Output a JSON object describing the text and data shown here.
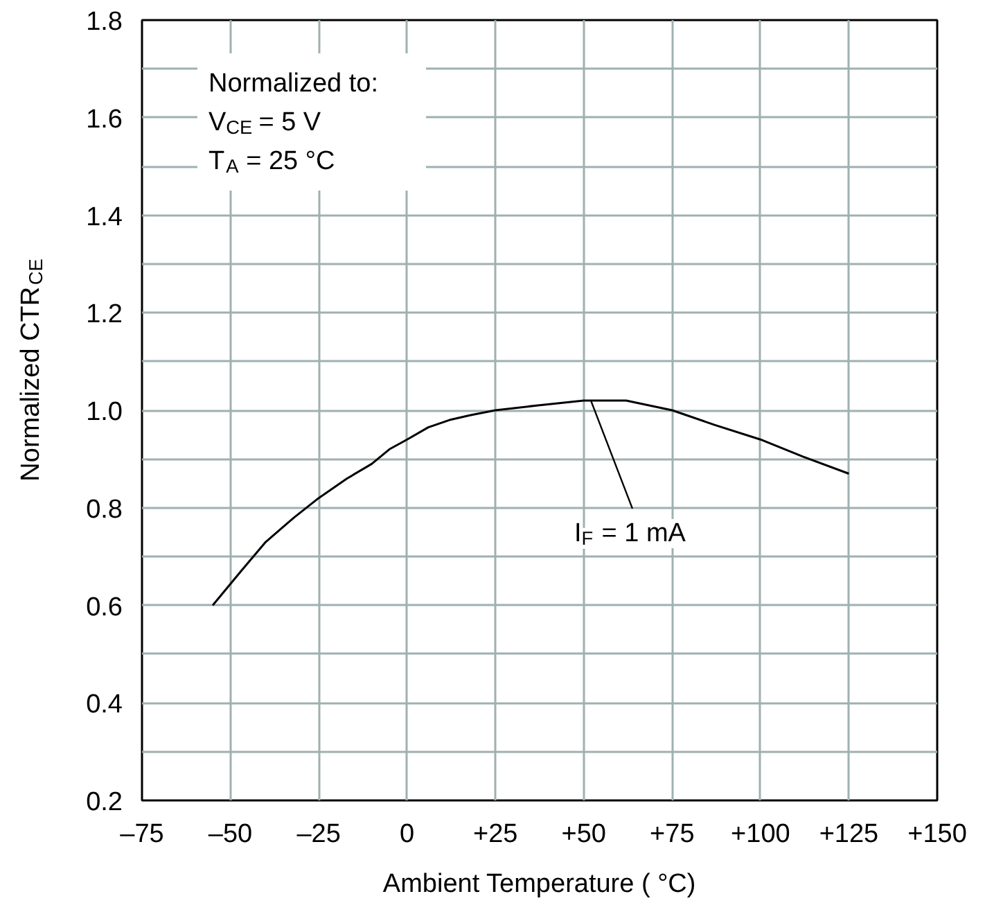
{
  "chart_data": {
    "type": "line",
    "xlabel": "Ambient Temperature ( °C)",
    "ylabel": "Normalized CTR$_{CE}$",
    "x": [
      -55,
      -47,
      -40,
      -32,
      -25,
      -17,
      -10,
      -5,
      0,
      6,
      12,
      18,
      25,
      37,
      50,
      62,
      75,
      87,
      100,
      112,
      125
    ],
    "series": [
      {
        "color": "#000000",
        "values": [
          0.6,
          0.67,
          0.73,
          0.78,
          0.82,
          0.86,
          0.89,
          0.92,
          0.94,
          0.965,
          0.98,
          0.99,
          1.0,
          1.01,
          1.02,
          1.02,
          1.0,
          0.97,
          0.94,
          0.905,
          0.87
        ]
      }
    ],
    "xlim": [
      -75,
      150
    ],
    "ylim": [
      0.2,
      1.8
    ],
    "xticks": [
      {
        "value": -75,
        "label": "–75"
      },
      {
        "value": -50,
        "label": "–50"
      },
      {
        "value": -25,
        "label": "–25"
      },
      0,
      {
        "value": 25,
        "label": "+25"
      },
      {
        "value": 50,
        "label": "+50"
      },
      {
        "value": 75,
        "label": "+75"
      },
      {
        "value": 100,
        "label": "+100"
      },
      {
        "value": 125,
        "label": "+125"
      },
      {
        "value": 150,
        "label": "+150"
      }
    ],
    "yticks": [
      0.2,
      {
        "value": 0.3,
        "label": null
      },
      0.4,
      {
        "value": 0.5,
        "label": null
      },
      0.6,
      {
        "value": 0.7,
        "label": null
      },
      0.8,
      {
        "value": 0.9,
        "label": null
      },
      {
        "value": 1.0,
        "label": "1.0"
      },
      {
        "value": 1.1,
        "label": null
      },
      1.2,
      {
        "value": 1.3,
        "label": null
      },
      1.4,
      {
        "value": 1.5,
        "label": null
      },
      1.6,
      {
        "value": 1.7,
        "label": null
      },
      1.8
    ],
    "grid": true,
    "marker": "none",
    "line_style": "solid",
    "annotations": [
      "Normalized to:",
      "V$_{CE}$ = 5 V",
      "T$_{A}$ = 25 °C",
      {
        "text": "I$_{F}$ = 1 mA",
        "x": 52,
        "y": 1.02
      }
    ]
  }
}
